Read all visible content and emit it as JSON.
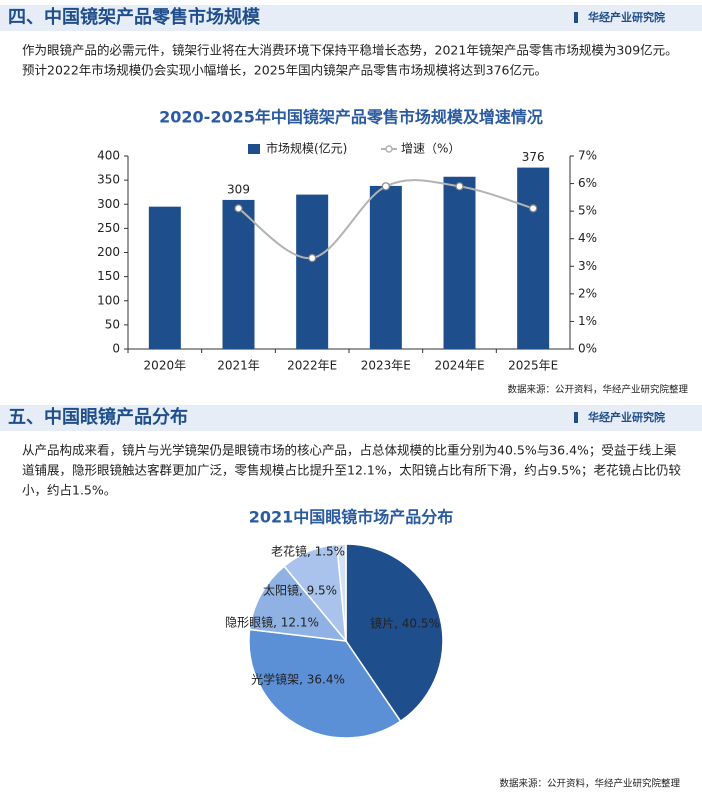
{
  "section1": {
    "heading": "四、中国镜架产品零售市场规模",
    "brand": "华经产业研究院",
    "paragraph": [
      "作为眼镜产品的必需元件，镜架行业将在大消费环境下保持平稳增长态势，2021年镜架产品零售市场规模为309亿元。",
      "预计2022年市场规模仍会实现小幅增长，2025年国内镜架产品零售市场规模将达到376亿元。"
    ],
    "source": "数据来源：公开资料，华经产业研究院整理"
  },
  "section2": {
    "heading": "五、中国眼镜产品分布",
    "brand": "华经产业研究院",
    "paragraph": [
      "从产品构成来看，镜片与光学镜架仍是眼镜市场的核心产品，占总体规模的比重分别为40.5%与36.4%；受益于线上渠",
      "道铺展，隐形眼镜触达客群更加广泛，零售规模占比提升至12.1%，太阳镜占比有所下滑，约占9.5%；老花镜占比仍较",
      "小，约占1.5%。"
    ],
    "source": "数据来源：公开资料，华经产业研究院整理"
  },
  "chart_data": [
    {
      "type": "bar",
      "title": "2020-2025年中国镜架产品零售市场规模及增速情况",
      "categories": [
        "2020年",
        "2021年",
        "2022年E",
        "2023年E",
        "2024年E",
        "2025年E"
      ],
      "series": [
        {
          "name": "市场规模(亿元)",
          "color": "#1f4e8c",
          "values": [
            295,
            309,
            320,
            338,
            357,
            376
          ]
        },
        {
          "name": "增速（%）",
          "color": "#b3b3b3",
          "type": "line",
          "axis": "y2",
          "values": [
            null,
            5.1,
            3.3,
            5.9,
            5.9,
            5.1
          ]
        }
      ],
      "ylim": [
        0,
        400
      ],
      "yticks": [
        0,
        50,
        100,
        150,
        200,
        250,
        300,
        350,
        400
      ],
      "y2lim": [
        0,
        7
      ],
      "y2ticks": [
        {
          "value": 0,
          "label": "0%"
        },
        {
          "value": 1,
          "label": "1%"
        },
        {
          "value": 2,
          "label": "2%"
        },
        {
          "value": 3,
          "label": "3%"
        },
        {
          "value": 4,
          "label": "4%"
        },
        {
          "value": 5,
          "label": "5%"
        },
        {
          "value": 6,
          "label": "6%"
        },
        {
          "value": 7,
          "label": "7%"
        }
      ]
    },
    {
      "type": "pie",
      "title": "2021中国眼镜市场产品分布",
      "values": [
        40.5,
        36.4,
        12.1,
        9.5,
        1.5
      ],
      "value_labels": [
        "镜片, 40.5%",
        "光学镜架, 36.4%",
        "隐形眼镜, 12.1%",
        "太阳镜, 9.5%",
        "老花镜, 1.5%"
      ],
      "colors": [
        "#1f4e8c",
        "#5b8fd6",
        "#8fb1e3",
        "#a9c3ec",
        "#d4e1f5"
      ]
    }
  ]
}
